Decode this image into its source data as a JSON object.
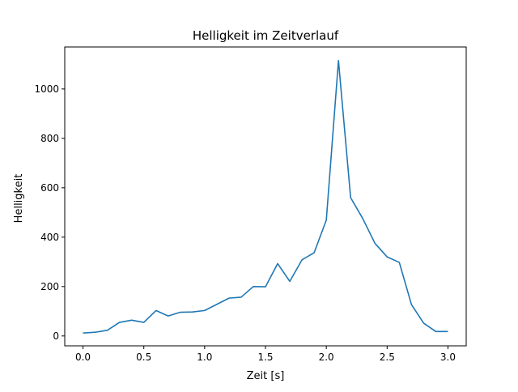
{
  "chart_data": {
    "type": "line",
    "title": "Helligkeit im Zeitverlauf",
    "xlabel": "Zeit [s]",
    "ylabel": "Helligkeit",
    "xlim": [
      -0.15,
      3.15
    ],
    "ylim": [
      -40,
      1170
    ],
    "xticks": [
      0.0,
      0.5,
      1.0,
      1.5,
      2.0,
      2.5,
      3.0
    ],
    "xtick_labels": [
      "0.0",
      "0.5",
      "1.0",
      "1.5",
      "2.0",
      "2.5",
      "3.0"
    ],
    "yticks": [
      0,
      200,
      400,
      600,
      800,
      1000
    ],
    "ytick_labels": [
      "0",
      "200",
      "400",
      "600",
      "800",
      "1000"
    ],
    "grid": false,
    "legend": "none",
    "line_color": "#1f77b4",
    "series": [
      {
        "x": [
          0.0,
          0.1,
          0.2,
          0.3,
          0.4,
          0.5,
          0.6,
          0.7,
          0.8,
          0.9,
          1.0,
          1.1,
          1.2,
          1.3,
          1.4,
          1.5,
          1.6,
          1.7,
          1.8,
          1.9,
          2.0,
          2.1,
          2.2,
          2.3,
          2.4,
          2.5,
          2.6,
          2.7,
          2.8,
          2.9,
          3.0
        ],
        "values": [
          12,
          15,
          23,
          55,
          64,
          55,
          103,
          81,
          96,
          97,
          103,
          128,
          153,
          157,
          200,
          199,
          293,
          221,
          308,
          337,
          469,
          1115,
          560,
          475,
          375,
          320,
          298,
          127,
          52,
          18,
          18
        ]
      }
    ]
  }
}
